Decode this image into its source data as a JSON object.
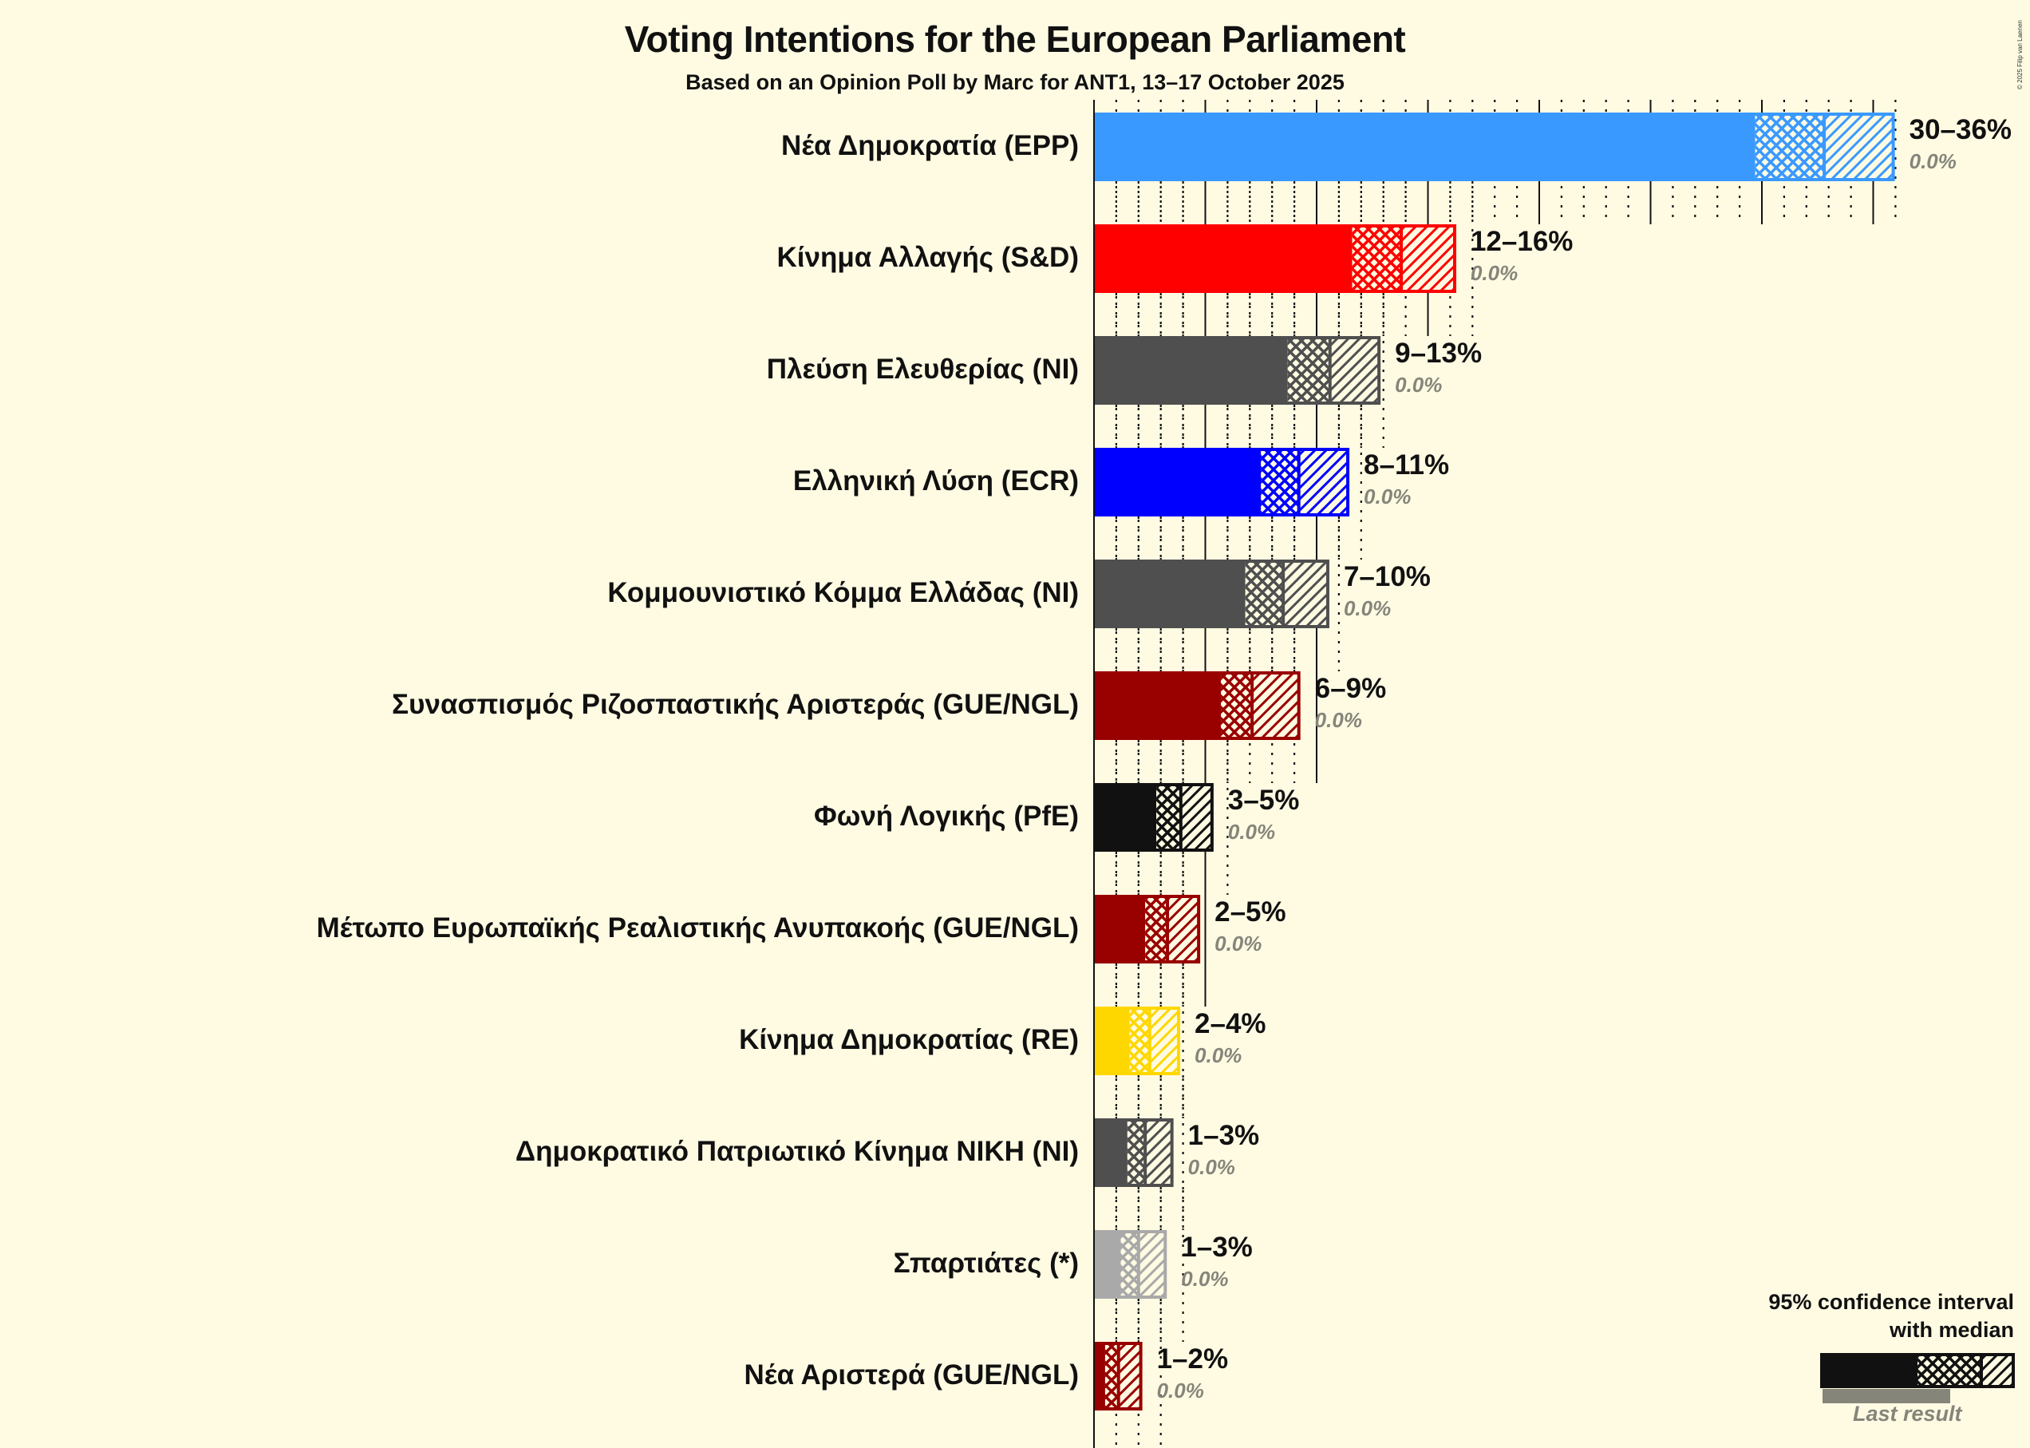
{
  "title": "Voting Intentions for the European Parliament",
  "subtitle": "Based on an Opinion Poll by Marc for ANT1, 13–17 October 2025",
  "copyright": "© 2025 Filip van Laenen",
  "legend": {
    "title_line1": "95% confidence interval",
    "title_line2": "with median",
    "last_result": "Last result",
    "bar_color": "#111111",
    "last_color": "#85857A"
  },
  "background": "#FFFBE3",
  "chart_data": {
    "type": "bar",
    "orientation": "horizontal",
    "title": "Voting Intentions for the European Parliament",
    "subtitle": "Based on an Opinion Poll by Marc for ANT1, 13–17 October 2025",
    "xlabel": "",
    "ylabel": "",
    "xlim": [
      0,
      37
    ],
    "grid": {
      "major_every": 5,
      "minor_every": 1,
      "major_style": "solid",
      "minor_style": "dotted"
    },
    "legend_position": "bottom-right",
    "categories": [
      "Νέα Δημοκρατία (EPP)",
      "Κίνημα Αλλαγής (S&D)",
      "Πλεύση Ελευθερίας (NI)",
      "Ελληνική Λύση (ECR)",
      "Κομμουνιστικό Κόμμα Ελλάδας (NI)",
      "Συνασπισμός Ριζοσπαστικής Αριστεράς (GUE/NGL)",
      "Φωνή Λογικής (PfE)",
      "Μέτωπο Ευρωπαϊκής Ρεαλιστικής Ανυπακοής (GUE/NGL)",
      "Κίνημα Δημοκρατίας (RE)",
      "Δημοκρατικό Πατριωτικό Κίνημα ΝΙΚΗ (NI)",
      "Σπαρτιάτες (*)",
      "Νέα Αριστερά (GUE/NGL)"
    ],
    "parties": [
      {
        "name": "Νέα Δημοκρατία (EPP)",
        "color": "#3A99FF",
        "ci_low": 29.7,
        "median": 32.8,
        "ci_high": 35.9,
        "range_label": "30–36%",
        "last_result": 0.0,
        "last_label": "0.0%"
      },
      {
        "name": "Κίνημα Αλλαγής (S&D)",
        "color": "#FF0000",
        "ci_low": 11.6,
        "median": 13.8,
        "ci_high": 16.2,
        "range_label": "12–16%",
        "last_result": 0.0,
        "last_label": "0.0%"
      },
      {
        "name": "Πλεύση Ελευθερίας (NI)",
        "color": "#4F4F4F",
        "ci_low": 8.7,
        "median": 10.6,
        "ci_high": 12.8,
        "range_label": "9–13%",
        "last_result": 0.0,
        "last_label": "0.0%"
      },
      {
        "name": "Ελληνική Λύση (ECR)",
        "color": "#0000FF",
        "ci_low": 7.5,
        "median": 9.2,
        "ci_high": 11.4,
        "range_label": "8–11%",
        "last_result": 0.0,
        "last_label": "0.0%"
      },
      {
        "name": "Κομμουνιστικό Κόμμα Ελλάδας (NI)",
        "color": "#4F4F4F",
        "ci_low": 6.8,
        "median": 8.5,
        "ci_high": 10.5,
        "range_label": "7–10%",
        "last_result": 0.0,
        "last_label": "0.0%"
      },
      {
        "name": "Συνασπισμός Ριζοσπαστικής Αριστεράς (GUE/NGL)",
        "color": "#990000",
        "ci_low": 5.7,
        "median": 7.1,
        "ci_high": 9.2,
        "range_label": "6–9%",
        "last_result": 0.0,
        "last_label": "0.0%"
      },
      {
        "name": "Φωνή Λογικής (PfE)",
        "color": "#111111",
        "ci_low": 2.8,
        "median": 3.9,
        "ci_high": 5.3,
        "range_label": "3–5%",
        "last_result": 0.0,
        "last_label": "0.0%"
      },
      {
        "name": "Μέτωπο Ευρωπαϊκής Ρεαλιστικής Ανυπακοής (GUE/NGL)",
        "color": "#990000",
        "ci_low": 2.3,
        "median": 3.3,
        "ci_high": 4.7,
        "range_label": "2–5%",
        "last_result": 0.0,
        "last_label": "0.0%"
      },
      {
        "name": "Κίνημα Δημοκρατίας (RE)",
        "color": "#FFD700",
        "ci_low": 1.6,
        "median": 2.5,
        "ci_high": 3.8,
        "range_label": "2–4%",
        "last_result": 0.0,
        "last_label": "0.0%"
      },
      {
        "name": "Δημοκρατικό Πατριωτικό Κίνημα ΝΙΚΗ (NI)",
        "color": "#4F4F4F",
        "ci_low": 1.5,
        "median": 2.3,
        "ci_high": 3.5,
        "range_label": "1–3%",
        "last_result": 0.0,
        "last_label": "0.0%"
      },
      {
        "name": "Σπαρτιάτες (*)",
        "color": "#A9A9A9",
        "ci_low": 1.2,
        "median": 2.0,
        "ci_high": 3.2,
        "range_label": "1–3%",
        "last_result": 0.0,
        "last_label": "0.0%"
      },
      {
        "name": "Νέα Αριστερά (GUE/NGL)",
        "color": "#990000",
        "ci_low": 0.5,
        "median": 1.1,
        "ci_high": 2.1,
        "range_label": "1–2%",
        "last_result": 0.0,
        "last_label": "0.0%"
      }
    ]
  }
}
